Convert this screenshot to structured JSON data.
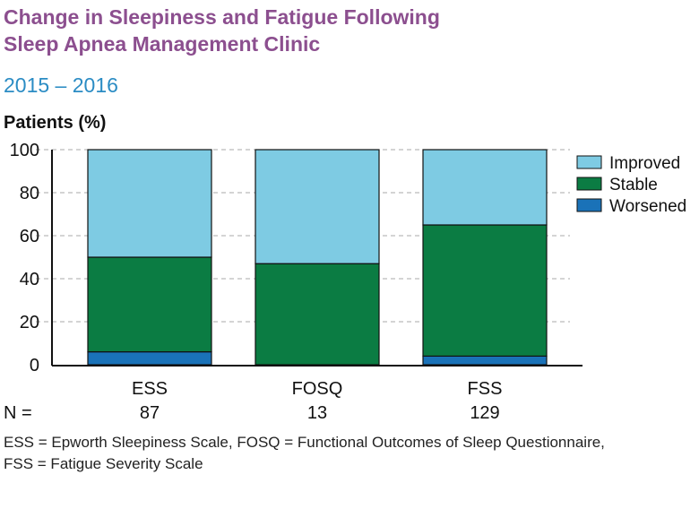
{
  "header": {
    "title_line1": "Change in Sleepiness and Fatigue Following",
    "title_line2": "Sleep Apnea Management Clinic",
    "subtitle": "2015 – 2016"
  },
  "chart_data": {
    "type": "bar",
    "stacked": true,
    "ylabel": "Patients (%)",
    "ylim": [
      0,
      100
    ],
    "yticks": [
      0,
      20,
      40,
      60,
      80,
      100
    ],
    "grid": true,
    "legend_position": "right",
    "categories": [
      "ESS",
      "FOSQ",
      "FSS"
    ],
    "n_label": "N =",
    "n_values": [
      "87",
      "13",
      "129"
    ],
    "series": [
      {
        "name": "Worsened",
        "color": "#1a72b8",
        "values": [
          6,
          0,
          4
        ]
      },
      {
        "name": "Stable",
        "color": "#0b7c43",
        "values": [
          44,
          47,
          61
        ]
      },
      {
        "name": "Improved",
        "color": "#7ecbe3",
        "values": [
          50,
          53,
          35
        ]
      }
    ],
    "legend_order": [
      "Improved",
      "Stable",
      "Worsened"
    ]
  },
  "footnote": {
    "line1": "ESS = Epworth Sleepiness Scale, FOSQ = Functional Outcomes of Sleep Questionnaire,",
    "line2": "FSS = Fatigue Severity Scale"
  }
}
